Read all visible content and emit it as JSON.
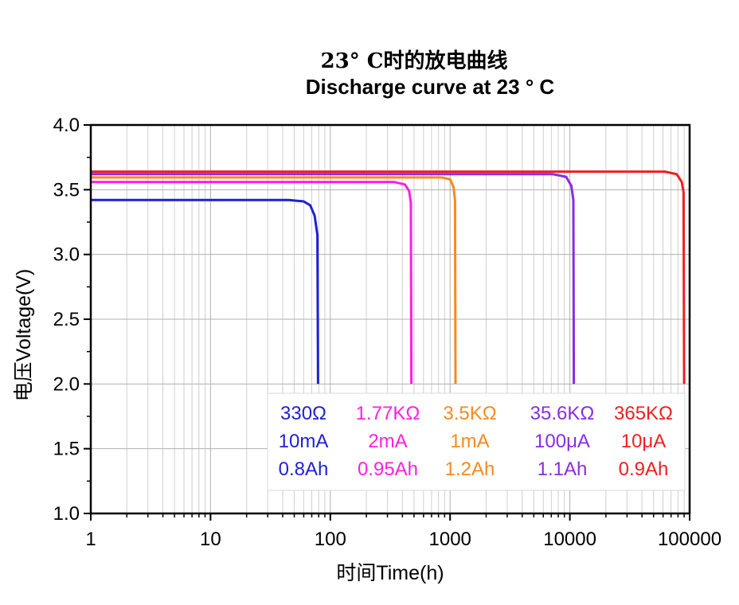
{
  "chart_data": {
    "type": "line",
    "title": "23° C时的放电曲线",
    "subtitle": "Discharge curve at 23 ° C",
    "xlabel": "时间Time(h)",
    "ylabel": "电压Voltage(V)",
    "xscale": "log",
    "xlim": [
      1,
      100000
    ],
    "ylim": [
      1.0,
      4.0
    ],
    "grid": true,
    "x_ticks": [
      "1",
      "10",
      "100",
      "1000",
      "10000",
      "100000"
    ],
    "y_ticks": [
      "1.0",
      "1.5",
      "2.0",
      "2.5",
      "3.0",
      "3.5",
      "4.0"
    ],
    "legend_placement": "bottom-right",
    "series": [
      {
        "load": "330Ω",
        "current": "10mA",
        "capacity": "0.8Ah",
        "color": "#1f1fd6",
        "points": [
          [
            1,
            3.42
          ],
          [
            45,
            3.42
          ],
          [
            60,
            3.41
          ],
          [
            68,
            3.38
          ],
          [
            74,
            3.3
          ],
          [
            78,
            3.15
          ],
          [
            79,
            2.0
          ]
        ]
      },
      {
        "load": "1.77KΩ",
        "current": "2mA",
        "capacity": "0.95Ah",
        "color": "#ff1fe0",
        "points": [
          [
            1,
            3.56
          ],
          [
            340,
            3.56
          ],
          [
            420,
            3.54
          ],
          [
            455,
            3.49
          ],
          [
            470,
            3.4
          ],
          [
            475,
            2.0
          ]
        ]
      },
      {
        "load": "3.5KΩ",
        "current": "1mA",
        "capacity": "1.2Ah",
        "color": "#f58a1f",
        "points": [
          [
            1,
            3.595
          ],
          [
            850,
            3.595
          ],
          [
            1000,
            3.58
          ],
          [
            1070,
            3.52
          ],
          [
            1100,
            3.42
          ],
          [
            1110,
            2.0
          ]
        ]
      },
      {
        "load": "35.6KΩ",
        "current": "100μA",
        "capacity": "1.1Ah",
        "color": "#8a2be2",
        "points": [
          [
            1,
            3.62
          ],
          [
            7200,
            3.62
          ],
          [
            9300,
            3.6
          ],
          [
            10300,
            3.53
          ],
          [
            10700,
            3.42
          ],
          [
            10800,
            2.0
          ]
        ]
      },
      {
        "load": "365KΩ",
        "current": "10μA",
        "capacity": "0.9Ah",
        "color": "#f01e1e",
        "points": [
          [
            1,
            3.64
          ],
          [
            62000,
            3.64
          ],
          [
            78000,
            3.62
          ],
          [
            86000,
            3.56
          ],
          [
            89000,
            3.48
          ],
          [
            90000,
            2.0
          ]
        ]
      }
    ]
  }
}
